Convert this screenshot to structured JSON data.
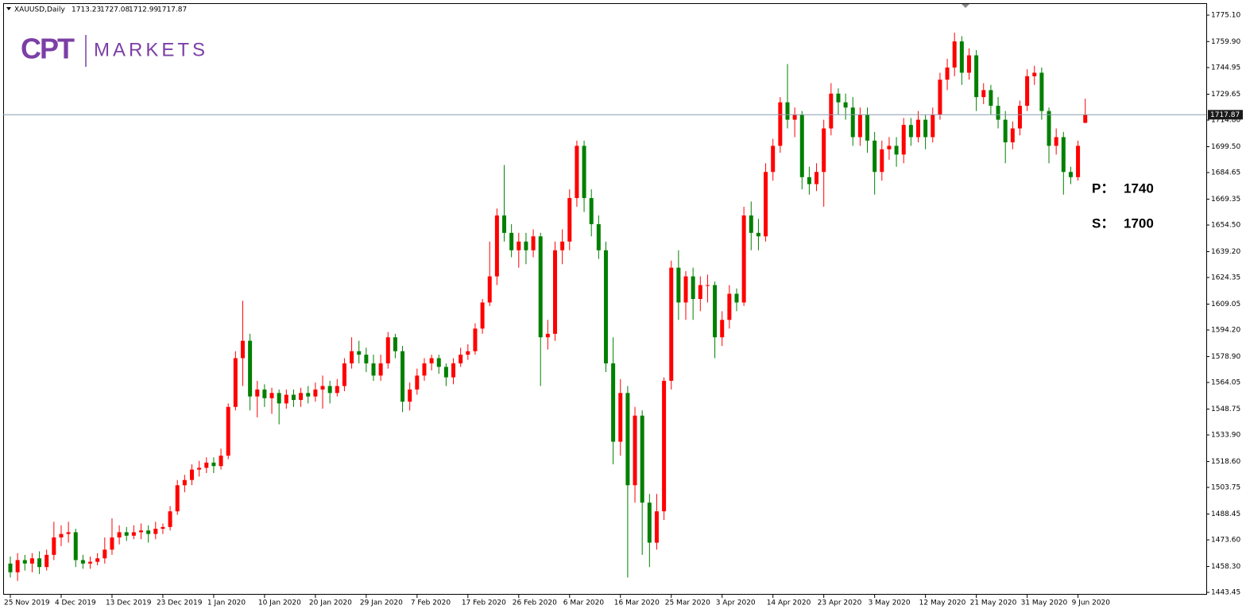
{
  "chart_data": {
    "type": "candlestick",
    "symbol": "XAUUSD,Daily",
    "logo": {
      "mark": "CPT",
      "text": "MARKETS"
    },
    "levels": [
      {
        "label": "P：",
        "value": 1740
      },
      {
        "label": "S：",
        "value": 1700
      }
    ],
    "up_color": "#ff0000",
    "down_color": "#008000",
    "price_line_color": "#8a9bb0",
    "ylim": [
      1442.1,
      1781.5
    ],
    "yticks": [
      {
        "value": 1775.1,
        "label": "1775.10"
      },
      {
        "value": 1759.9,
        "label": "1759.90"
      },
      1744.95,
      1729.65,
      {
        "value": 1714.8,
        "label": "1714.80"
      },
      {
        "value": 1699.5,
        "label": "1699.50"
      },
      1684.65,
      1669.35,
      {
        "value": 1654.5,
        "label": "1654.50"
      },
      {
        "value": 1639.2,
        "label": "1639.20"
      },
      1624.35,
      1609.05,
      {
        "value": 1594.2,
        "label": "1594.20"
      },
      {
        "value": 1578.9,
        "label": "1578.90"
      },
      1564.05,
      1548.75,
      {
        "value": 1533.9,
        "label": "1533.90"
      },
      {
        "value": 1518.6,
        "label": "1518.60"
      },
      1503.75,
      1488.45,
      {
        "value": 1473.6,
        "label": "1473.60"
      },
      {
        "value": 1458.3,
        "label": "1458.30"
      },
      1443.45
    ],
    "categories": [
      "25 Nov 2019",
      null,
      null,
      null,
      null,
      null,
      null,
      "4 Dec 2019",
      null,
      null,
      null,
      null,
      null,
      null,
      "13 Dec 2019",
      null,
      null,
      null,
      null,
      null,
      null,
      "23 Dec 2019",
      null,
      null,
      null,
      null,
      null,
      null,
      "1 Jan 2020",
      null,
      null,
      null,
      null,
      null,
      null,
      "10 Jan 2020",
      null,
      null,
      null,
      null,
      null,
      null,
      "20 Jan 2020",
      null,
      null,
      null,
      null,
      null,
      null,
      "29 Jan 2020",
      null,
      null,
      null,
      null,
      null,
      null,
      "7 Feb 2020",
      null,
      null,
      null,
      null,
      null,
      null,
      "17 Feb 2020",
      null,
      null,
      null,
      null,
      null,
      null,
      "26 Feb 2020",
      null,
      null,
      null,
      null,
      null,
      null,
      "6 Mar 2020",
      null,
      null,
      null,
      null,
      null,
      null,
      "16 Mar 2020",
      null,
      null,
      null,
      null,
      null,
      null,
      "25 Mar 2020",
      null,
      null,
      null,
      null,
      null,
      null,
      "3 Apr 2020",
      null,
      null,
      null,
      null,
      null,
      null,
      "14 Apr 2020",
      null,
      null,
      null,
      null,
      null,
      null,
      "23 Apr 2020",
      null,
      null,
      null,
      null,
      null,
      null,
      "3 May 2020",
      null,
      null,
      null,
      null,
      null,
      null,
      "12 May 2020",
      null,
      null,
      null,
      null,
      null,
      null,
      "21 May 2020",
      null,
      null,
      null,
      null,
      null,
      null,
      "31 May 2020",
      null,
      null,
      null,
      null,
      null,
      null,
      "9 Jun 2020",
      null
    ],
    "candles": [
      [
        1460,
        1464,
        1452,
        1455
      ],
      [
        1455,
        1466,
        1450,
        1462
      ],
      [
        1462,
        1465,
        1456,
        1460
      ],
      [
        1460,
        1466,
        1455,
        1463
      ],
      [
        1463,
        1467,
        1454,
        1458
      ],
      [
        1458,
        1468,
        1456,
        1465
      ],
      [
        1465,
        1484,
        1462,
        1475
      ],
      [
        1475,
        1482,
        1470,
        1477
      ],
      [
        1477,
        1484,
        1472,
        1478
      ],
      [
        1478,
        1480,
        1458,
        1462
      ],
      [
        1462,
        1465,
        1457,
        1460
      ],
      [
        1460,
        1464,
        1457,
        1461
      ],
      [
        1461,
        1466,
        1459,
        1463
      ],
      [
        1463,
        1475,
        1460,
        1468
      ],
      [
        1468,
        1486,
        1465,
        1475
      ],
      [
        1475,
        1482,
        1471,
        1478
      ],
      [
        1478,
        1481,
        1473,
        1476
      ],
      [
        1476,
        1482,
        1474,
        1478
      ],
      [
        1478,
        1483,
        1474,
        1479
      ],
      [
        1479,
        1482,
        1472,
        1477
      ],
      [
        1477,
        1484,
        1474,
        1480
      ],
      [
        1480,
        1483,
        1477,
        1481
      ],
      [
        1481,
        1493,
        1479,
        1490
      ],
      [
        1490,
        1508,
        1488,
        1505
      ],
      [
        1505,
        1511,
        1501,
        1508
      ],
      [
        1508,
        1517,
        1505,
        1514
      ],
      [
        1514,
        1519,
        1510,
        1515
      ],
      [
        1515,
        1521,
        1512,
        1518
      ],
      [
        1518,
        1521,
        1512,
        1516
      ],
      [
        1516,
        1526,
        1514,
        1522
      ],
      [
        1522,
        1552,
        1520,
        1550
      ],
      [
        1550,
        1582,
        1548,
        1578
      ],
      [
        1578,
        1611,
        1562,
        1588
      ],
      [
        1588,
        1592,
        1548,
        1556
      ],
      [
        1556,
        1565,
        1544,
        1560
      ],
      [
        1560,
        1563,
        1550,
        1555
      ],
      [
        1555,
        1561,
        1546,
        1558
      ],
      [
        1558,
        1560,
        1540,
        1552
      ],
      [
        1552,
        1560,
        1549,
        1557
      ],
      [
        1557,
        1560,
        1550,
        1554
      ],
      [
        1554,
        1561,
        1550,
        1558
      ],
      [
        1558,
        1562,
        1552,
        1556
      ],
      [
        1556,
        1564,
        1553,
        1560
      ],
      [
        1560,
        1568,
        1549,
        1562
      ],
      [
        1562,
        1565,
        1552,
        1558
      ],
      [
        1558,
        1566,
        1556,
        1562
      ],
      [
        1562,
        1578,
        1559,
        1575
      ],
      [
        1575,
        1590,
        1572,
        1582
      ],
      [
        1582,
        1588,
        1575,
        1580
      ],
      [
        1580,
        1584,
        1570,
        1575
      ],
      [
        1575,
        1580,
        1565,
        1568
      ],
      [
        1568,
        1580,
        1565,
        1575
      ],
      [
        1575,
        1593,
        1572,
        1590
      ],
      [
        1590,
        1592,
        1578,
        1582
      ],
      [
        1582,
        1585,
        1547,
        1553
      ],
      [
        1553,
        1564,
        1548,
        1560
      ],
      [
        1560,
        1572,
        1557,
        1568
      ],
      [
        1568,
        1578,
        1565,
        1575
      ],
      [
        1575,
        1580,
        1571,
        1578
      ],
      [
        1578,
        1580,
        1569,
        1573
      ],
      [
        1573,
        1575,
        1562,
        1567
      ],
      [
        1567,
        1578,
        1563,
        1575
      ],
      [
        1575,
        1584,
        1573,
        1580
      ],
      [
        1580,
        1586,
        1577,
        1582
      ],
      [
        1582,
        1598,
        1580,
        1595
      ],
      [
        1595,
        1612,
        1592,
        1610
      ],
      [
        1610,
        1645,
        1608,
        1625
      ],
      [
        1625,
        1664,
        1620,
        1660
      ],
      [
        1660,
        1689,
        1645,
        1650
      ],
      [
        1650,
        1655,
        1636,
        1640
      ],
      [
        1640,
        1650,
        1630,
        1645
      ],
      [
        1645,
        1650,
        1632,
        1640
      ],
      [
        1640,
        1652,
        1636,
        1648
      ],
      [
        1648,
        1650,
        1562,
        1590
      ],
      [
        1590,
        1600,
        1583,
        1592
      ],
      [
        1592,
        1645,
        1588,
        1640
      ],
      [
        1640,
        1652,
        1632,
        1645
      ],
      [
        1645,
        1675,
        1640,
        1670
      ],
      [
        1670,
        1703,
        1665,
        1700
      ],
      [
        1700,
        1703,
        1662,
        1670
      ],
      [
        1670,
        1675,
        1648,
        1655
      ],
      [
        1655,
        1660,
        1635,
        1640
      ],
      [
        1640,
        1645,
        1570,
        1575
      ],
      [
        1575,
        1590,
        1517,
        1530
      ],
      [
        1530,
        1566,
        1522,
        1558
      ],
      [
        1558,
        1562,
        1452,
        1505
      ],
      [
        1505,
        1550,
        1495,
        1545
      ],
      [
        1545,
        1548,
        1465,
        1495
      ],
      [
        1495,
        1500,
        1458,
        1472
      ],
      [
        1472,
        1500,
        1468,
        1490
      ],
      [
        1490,
        1567,
        1485,
        1565
      ],
      [
        1565,
        1634,
        1560,
        1630
      ],
      [
        1630,
        1640,
        1600,
        1610
      ],
      [
        1610,
        1628,
        1600,
        1625
      ],
      [
        1625,
        1630,
        1600,
        1612
      ],
      [
        1612,
        1625,
        1605,
        1620
      ],
      [
        1620,
        1626,
        1610,
        1620
      ],
      [
        1620,
        1622,
        1578,
        1590
      ],
      [
        1590,
        1605,
        1585,
        1600
      ],
      [
        1600,
        1620,
        1595,
        1615
      ],
      [
        1615,
        1618,
        1605,
        1610
      ],
      [
        1610,
        1665,
        1608,
        1660
      ],
      [
        1660,
        1668,
        1640,
        1650
      ],
      [
        1650,
        1658,
        1640,
        1648
      ],
      [
        1648,
        1690,
        1645,
        1685
      ],
      [
        1685,
        1704,
        1680,
        1700
      ],
      [
        1700,
        1728,
        1696,
        1725
      ],
      [
        1725,
        1747,
        1710,
        1715
      ],
      [
        1715,
        1722,
        1705,
        1718
      ],
      [
        1718,
        1720,
        1675,
        1682
      ],
      [
        1682,
        1688,
        1672,
        1678
      ],
      [
        1678,
        1690,
        1674,
        1685
      ],
      [
        1685,
        1715,
        1665,
        1710
      ],
      [
        1710,
        1736,
        1706,
        1730
      ],
      [
        1730,
        1733,
        1718,
        1725
      ],
      [
        1725,
        1730,
        1715,
        1722
      ],
      [
        1722,
        1728,
        1700,
        1705
      ],
      [
        1705,
        1722,
        1700,
        1718
      ],
      [
        1718,
        1722,
        1696,
        1703
      ],
      [
        1703,
        1708,
        1672,
        1685
      ],
      [
        1685,
        1703,
        1680,
        1698
      ],
      [
        1698,
        1705,
        1692,
        1700
      ],
      [
        1700,
        1705,
        1688,
        1695
      ],
      [
        1695,
        1716,
        1690,
        1712
      ],
      [
        1712,
        1716,
        1700,
        1705
      ],
      [
        1705,
        1720,
        1702,
        1715
      ],
      [
        1715,
        1718,
        1698,
        1705
      ],
      [
        1705,
        1722,
        1702,
        1718
      ],
      [
        1718,
        1742,
        1715,
        1738
      ],
      [
        1738,
        1750,
        1732,
        1745
      ],
      [
        1745,
        1765,
        1740,
        1760
      ],
      [
        1760,
        1763,
        1735,
        1742
      ],
      [
        1742,
        1756,
        1738,
        1752
      ],
      [
        1752,
        1755,
        1720,
        1728
      ],
      [
        1728,
        1736,
        1724,
        1732
      ],
      [
        1732,
        1735,
        1718,
        1723
      ],
      [
        1723,
        1728,
        1710,
        1715
      ],
      [
        1715,
        1720,
        1690,
        1702
      ],
      [
        1702,
        1714,
        1698,
        1710
      ],
      [
        1710,
        1726,
        1706,
        1723
      ],
      [
        1723,
        1744,
        1720,
        1740
      ],
      [
        1740,
        1746,
        1735,
        1742
      ],
      [
        1742,
        1745,
        1715,
        1720
      ],
      [
        1720,
        1722,
        1690,
        1700
      ],
      [
        1700,
        1710,
        1695,
        1705
      ],
      [
        1705,
        1708,
        1672,
        1685
      ],
      [
        1685,
        1688,
        1678,
        1682
      ],
      [
        1682,
        1703,
        1680,
        1700
      ],
      [
        1713.23,
        1727.08,
        1712.99,
        1717.87
      ]
    ]
  }
}
